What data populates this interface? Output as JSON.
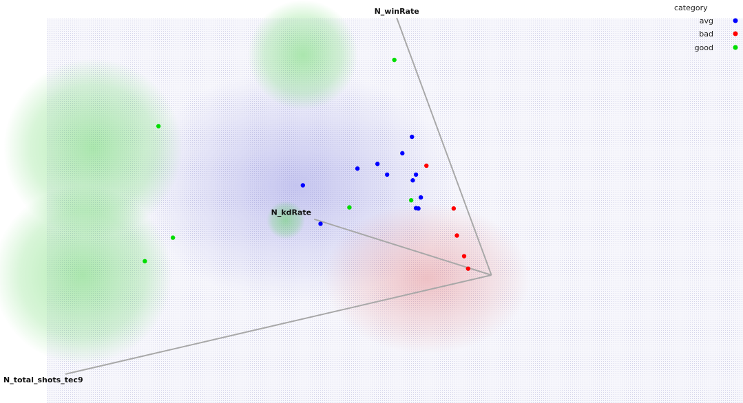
{
  "chart_data": {
    "type": "scatter",
    "legend": {
      "title": "category",
      "placement": "top-right",
      "entries": [
        {
          "name": "avg",
          "color": "#0000ff"
        },
        {
          "name": "bad",
          "color": "#ff0000"
        },
        {
          "name": "good",
          "color": "#00dd00"
        }
      ]
    },
    "anchors": [
      {
        "name": "N_winRate",
        "x": 0.413,
        "y": 1.0
      },
      {
        "name": "N_kdRate",
        "x": 0.31,
        "y": 0.435
      },
      {
        "name": "N_total_shots_tec9",
        "x": 0.0,
        "y": 0.0
      }
    ],
    "center": {
      "x": 0.531,
      "y": 0.278
    },
    "series": [
      {
        "name": "avg",
        "color": "#0000ff",
        "points": [
          [
            0.432,
            0.666
          ],
          [
            0.42,
            0.62
          ],
          [
            0.364,
            0.577
          ],
          [
            0.389,
            0.59
          ],
          [
            0.401,
            0.56
          ],
          [
            0.437,
            0.56
          ],
          [
            0.433,
            0.544
          ],
          [
            0.443,
            0.496
          ],
          [
            0.437,
            0.466
          ],
          [
            0.44,
            0.465
          ],
          [
            0.296,
            0.53
          ],
          [
            0.318,
            0.422
          ]
        ]
      },
      {
        "name": "bad",
        "color": "#ff0000",
        "points": [
          [
            0.45,
            0.585
          ],
          [
            0.484,
            0.465
          ],
          [
            0.488,
            0.389
          ],
          [
            0.497,
            0.331
          ],
          [
            0.502,
            0.296
          ]
        ]
      },
      {
        "name": "good",
        "color": "#00dd00",
        "points": [
          [
            0.41,
            0.882
          ],
          [
            0.116,
            0.696
          ],
          [
            0.134,
            0.383
          ],
          [
            0.099,
            0.317
          ],
          [
            0.354,
            0.468
          ],
          [
            0.431,
            0.488
          ]
        ]
      }
    ]
  }
}
